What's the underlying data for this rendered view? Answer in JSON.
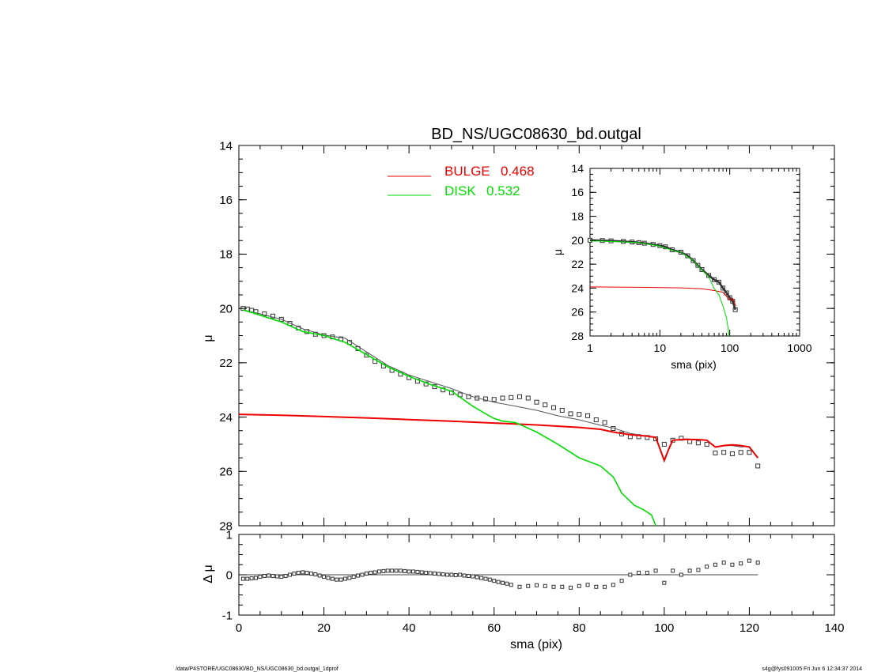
{
  "title": "BD_NS/UGC08630_bd.outgal",
  "footer": {
    "left": "/data/P4STORE/UGC08630/BD_NS/UGC08630_bd.outgal_1dprof",
    "right": "s4g@fys091005  Fri Jun  6 12:34:37 2014"
  },
  "colors": {
    "bulge": "#ee0000",
    "disk": "#00dd00",
    "model": "#555555",
    "data": "#333333"
  },
  "chart_data": [
    {
      "type": "line",
      "role": "main-profile",
      "ylabel": "μ",
      "xlim": [
        0,
        140
      ],
      "ylim": [
        28,
        14
      ],
      "yticks": [
        14,
        16,
        18,
        20,
        22,
        24,
        26,
        28
      ],
      "legend": [
        {
          "name": "BULGE",
          "value": "0.468",
          "color": "#ee0000"
        },
        {
          "name": "DISK",
          "value": "0.532",
          "color": "#00dd00"
        }
      ],
      "series": [
        {
          "name": "data",
          "style": "markers",
          "x": [
            1,
            2,
            3,
            4,
            6,
            8,
            10,
            12,
            14,
            16,
            18,
            20,
            22,
            24,
            26,
            28,
            30,
            32,
            34,
            36,
            38,
            40,
            42,
            44,
            46,
            48,
            50,
            52,
            54,
            56,
            58,
            60,
            62,
            64,
            66,
            68,
            70,
            72,
            74,
            76,
            78,
            80,
            82,
            84,
            86,
            88,
            90,
            92,
            94,
            96,
            98,
            100,
            102,
            104,
            106,
            108,
            110,
            112,
            114,
            116,
            118,
            120,
            122
          ],
          "y": [
            20.0,
            20.02,
            20.07,
            20.12,
            20.2,
            20.28,
            20.4,
            20.55,
            20.72,
            20.85,
            20.95,
            21.0,
            21.05,
            21.12,
            21.25,
            21.48,
            21.72,
            21.95,
            22.12,
            22.28,
            22.42,
            22.55,
            22.68,
            22.78,
            22.88,
            23.0,
            23.1,
            23.18,
            23.25,
            23.3,
            23.33,
            23.35,
            23.3,
            23.28,
            23.25,
            23.3,
            23.45,
            23.55,
            23.65,
            23.75,
            23.88,
            23.9,
            23.95,
            24.1,
            24.2,
            24.42,
            24.62,
            24.72,
            24.72,
            24.75,
            24.8,
            25.0,
            24.85,
            24.78,
            24.9,
            24.95,
            25.0,
            25.32,
            25.3,
            25.35,
            25.3,
            25.3,
            25.8
          ]
        },
        {
          "name": "model",
          "x": [
            1,
            5,
            10,
            15,
            20,
            25,
            30,
            35,
            40,
            45,
            50,
            55,
            60,
            65,
            70,
            75,
            80,
            85,
            88,
            92,
            96,
            98,
            100,
            102,
            105,
            108,
            110,
            112,
            114,
            116,
            118,
            120,
            122
          ],
          "y": [
            20.05,
            20.2,
            20.4,
            20.75,
            20.98,
            21.1,
            21.6,
            22.1,
            22.45,
            22.7,
            22.95,
            23.25,
            23.45,
            23.6,
            23.75,
            23.95,
            24.1,
            24.3,
            24.4,
            24.6,
            24.7,
            24.75,
            25.6,
            24.85,
            24.8,
            24.82,
            24.85,
            25.1,
            25.05,
            25.05,
            25.1,
            25.08,
            25.5
          ]
        },
        {
          "name": "BULGE",
          "color": "#ee0000",
          "x": [
            0,
            10,
            20,
            30,
            40,
            50,
            60,
            70,
            80,
            85,
            88,
            92,
            96,
            98,
            100,
            101,
            102,
            105,
            108,
            110,
            112,
            114,
            116,
            118,
            120,
            122
          ],
          "y": [
            23.9,
            23.93,
            23.98,
            24.03,
            24.09,
            24.15,
            24.22,
            24.29,
            24.38,
            24.45,
            24.55,
            24.65,
            24.7,
            24.75,
            25.6,
            25.2,
            24.85,
            24.82,
            24.83,
            24.85,
            25.1,
            25.05,
            25.02,
            25.05,
            25.1,
            25.5
          ]
        },
        {
          "name": "DISK",
          "color": "#00dd00",
          "x": [
            1,
            5,
            10,
            15,
            20,
            25,
            30,
            35,
            40,
            45,
            50,
            55,
            58,
            60,
            62,
            65,
            70,
            75,
            80,
            85,
            88,
            90,
            93,
            95,
            97,
            98
          ],
          "y": [
            20.05,
            20.25,
            20.5,
            20.85,
            21.0,
            21.25,
            21.7,
            22.15,
            22.5,
            22.8,
            23.05,
            23.6,
            23.88,
            24.05,
            24.15,
            24.2,
            24.55,
            25.0,
            25.5,
            25.8,
            26.2,
            26.8,
            27.25,
            27.4,
            27.6,
            28.0
          ]
        }
      ]
    },
    {
      "type": "scatter",
      "role": "residuals",
      "xlabel": "sma (pix)",
      "ylabel": "Δ μ",
      "xlim": [
        0,
        140
      ],
      "ylim": [
        -1,
        1
      ],
      "xticks": [
        0,
        20,
        40,
        60,
        80,
        100,
        120,
        140
      ],
      "yticks": [
        -1,
        0,
        1
      ],
      "series": [
        {
          "name": "residual",
          "x": [
            1,
            2,
            3,
            4,
            5,
            6,
            7,
            8,
            9,
            10,
            11,
            12,
            13,
            14,
            15,
            16,
            17,
            18,
            19,
            20,
            21,
            22,
            23,
            24,
            25,
            26,
            27,
            28,
            29,
            30,
            31,
            32,
            33,
            34,
            35,
            36,
            37,
            38,
            39,
            40,
            41,
            42,
            43,
            44,
            45,
            46,
            47,
            48,
            49,
            50,
            51,
            52,
            53,
            54,
            55,
            56,
            57,
            58,
            59,
            60,
            61,
            62,
            63,
            64,
            66,
            68,
            70,
            72,
            74,
            76,
            78,
            80,
            82,
            84,
            86,
            88,
            90,
            92,
            94,
            96,
            98,
            100,
            102,
            104,
            106,
            108,
            110,
            112,
            114,
            116,
            118,
            120,
            122
          ],
          "y": [
            -0.1,
            -0.1,
            -0.09,
            -0.08,
            -0.05,
            -0.03,
            -0.02,
            -0.03,
            -0.04,
            -0.05,
            -0.03,
            0.0,
            0.03,
            0.05,
            0.06,
            0.05,
            0.03,
            0.01,
            -0.02,
            -0.05,
            -0.08,
            -0.1,
            -0.12,
            -0.12,
            -0.1,
            -0.08,
            -0.05,
            -0.02,
            0.0,
            0.03,
            0.05,
            0.06,
            0.08,
            0.09,
            0.1,
            0.1,
            0.1,
            0.1,
            0.09,
            0.08,
            0.08,
            0.07,
            0.06,
            0.05,
            0.04,
            0.03,
            0.02,
            0.01,
            0.0,
            0.0,
            -0.01,
            0.0,
            -0.02,
            -0.03,
            -0.04,
            -0.06,
            -0.08,
            -0.1,
            -0.12,
            -0.15,
            -0.18,
            -0.2,
            -0.22,
            -0.25,
            -0.3,
            -0.28,
            -0.26,
            -0.28,
            -0.3,
            -0.3,
            -0.32,
            -0.28,
            -0.25,
            -0.3,
            -0.3,
            -0.25,
            -0.15,
            0.0,
            0.05,
            0.05,
            0.1,
            -0.2,
            0.1,
            0.0,
            0.1,
            0.12,
            0.2,
            0.25,
            0.3,
            0.25,
            0.28,
            0.35,
            0.3
          ]
        }
      ]
    },
    {
      "type": "line",
      "role": "inset-log",
      "xlabel": "sma (pix)",
      "ylabel": "μ",
      "xscale": "log",
      "xlim": [
        1,
        1000
      ],
      "ylim": [
        28,
        14
      ],
      "xticks": [
        1,
        10,
        100,
        1000
      ],
      "yticks": [
        14,
        16,
        18,
        20,
        22,
        24,
        26,
        28
      ],
      "series": [
        {
          "name": "data",
          "x": [
            1,
            1.5,
            2,
            3,
            4,
            5,
            6,
            8,
            10,
            12,
            15,
            20,
            25,
            30,
            35,
            40,
            50,
            60,
            70,
            80,
            90,
            100,
            110,
            120
          ],
          "y": [
            20.0,
            20.02,
            20.05,
            20.1,
            20.15,
            20.2,
            20.25,
            20.35,
            20.45,
            20.55,
            20.8,
            21.0,
            21.3,
            21.7,
            22.1,
            22.45,
            22.95,
            23.3,
            23.5,
            24.0,
            24.4,
            24.8,
            25.1,
            25.8
          ]
        },
        {
          "name": "BULGE",
          "color": "#ee0000",
          "x": [
            1,
            2,
            5,
            10,
            20,
            40,
            60,
            80,
            100,
            110,
            122
          ],
          "y": [
            23.9,
            23.91,
            23.93,
            23.95,
            23.98,
            24.06,
            24.2,
            24.35,
            25.0,
            24.85,
            25.5
          ]
        },
        {
          "name": "DISK",
          "color": "#00dd00",
          "x": [
            1,
            2,
            5,
            10,
            15,
            20,
            30,
            40,
            50,
            60,
            70,
            80,
            90,
            98
          ],
          "y": [
            20.05,
            20.1,
            20.2,
            20.5,
            20.85,
            21.0,
            21.7,
            22.5,
            23.05,
            24.05,
            24.55,
            25.5,
            26.5,
            28.0
          ]
        }
      ]
    }
  ]
}
